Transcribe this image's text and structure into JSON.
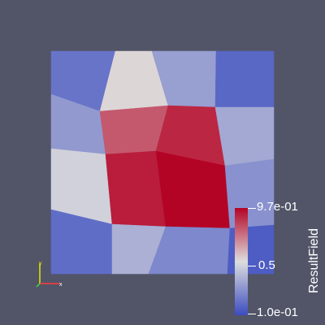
{
  "view": {
    "background_color": "#525568",
    "field_name": "ResultField",
    "colormap": "Cool to Warm",
    "colors": {
      "low": "#3b4cc0",
      "mid": "#dddddd",
      "high": "#b40426"
    }
  },
  "mesh": {
    "cells": [
      {
        "name": "cell-top-left",
        "value": 0.22
      },
      {
        "name": "cell-top-center-left",
        "value": 0.55
      },
      {
        "name": "cell-top-center-right",
        "value": 0.35
      },
      {
        "name": "cell-top-right",
        "value": 0.18
      },
      {
        "name": "cell-mid-upper-left",
        "value": 0.33
      },
      {
        "name": "cell-center-upper-left",
        "value": 0.8
      },
      {
        "name": "cell-center-upper-right",
        "value": 0.9
      },
      {
        "name": "cell-mid-upper-right",
        "value": 0.38
      },
      {
        "name": "cell-mid-lower-left",
        "value": 0.5
      },
      {
        "name": "cell-center-lower-left",
        "value": 0.92
      },
      {
        "name": "cell-center-lower-right",
        "value": 0.97
      },
      {
        "name": "cell-mid-lower-right",
        "value": 0.31
      },
      {
        "name": "cell-bottom-left",
        "value": 0.2
      },
      {
        "name": "cell-bottom-center-left",
        "value": 0.4
      },
      {
        "name": "cell-bottom-center-right",
        "value": 0.28
      },
      {
        "name": "cell-bottom-right",
        "value": 0.15
      }
    ]
  },
  "colorbar": {
    "title": "ResultField",
    "max_label": "9.7e-01",
    "mid_label": "0.5",
    "min_label": "1.0e-01",
    "min_value": 0.1,
    "max_value": 0.97
  },
  "axes": {
    "x_label": "x",
    "y_label": "y",
    "x_color": "#ff3b3b",
    "y_color": "#e6e600"
  }
}
